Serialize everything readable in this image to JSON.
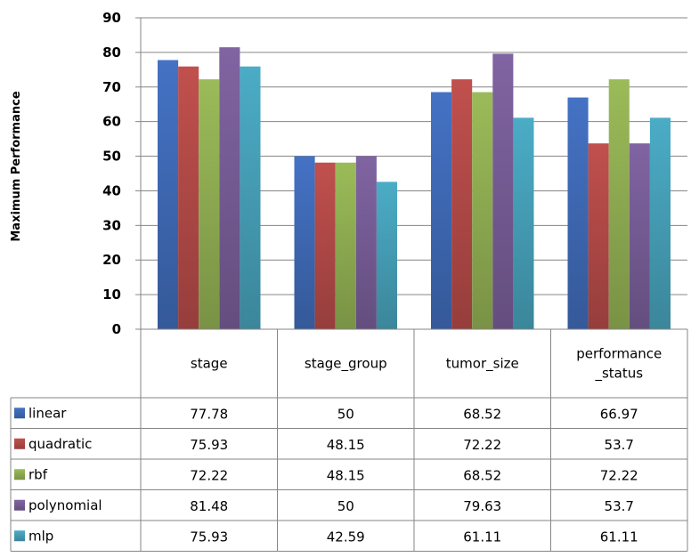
{
  "chart_data": {
    "type": "bar",
    "title": "",
    "xlabel": "",
    "ylabel": "Maximum Performance",
    "ylim": [
      0,
      90
    ],
    "yticks": [
      0,
      10,
      20,
      30,
      40,
      50,
      60,
      70,
      80,
      90
    ],
    "grid": true,
    "legend": "data-table",
    "categories": [
      [
        "stage"
      ],
      [
        "stage_group"
      ],
      [
        "tumor_size"
      ],
      [
        "performance",
        "_status"
      ]
    ],
    "series": [
      {
        "name": "linear",
        "color": "#4472C4",
        "values": [
          77.78,
          50,
          68.52,
          66.97
        ],
        "labels": [
          "77.78",
          "50",
          "68.52",
          "66.97"
        ]
      },
      {
        "name": "quadratic",
        "color": "#C0504D",
        "values": [
          75.93,
          48.15,
          72.22,
          53.7
        ],
        "labels": [
          "75.93",
          "48.15",
          "72.22",
          "53.7"
        ]
      },
      {
        "name": "rbf",
        "color": "#9BBB59",
        "values": [
          72.22,
          48.15,
          68.52,
          72.22
        ],
        "labels": [
          "72.22",
          "48.15",
          "68.52",
          "72.22"
        ]
      },
      {
        "name": "polynomial",
        "color": "#8064A2",
        "values": [
          81.48,
          50,
          79.63,
          53.7
        ],
        "labels": [
          "81.48",
          "50",
          "79.63",
          "53.7"
        ]
      },
      {
        "name": "mlp",
        "color": "#4BACC6",
        "values": [
          75.93,
          42.59,
          61.11,
          61.11
        ],
        "labels": [
          "75.93",
          "42.59",
          "61.11",
          "61.11"
        ]
      }
    ]
  }
}
